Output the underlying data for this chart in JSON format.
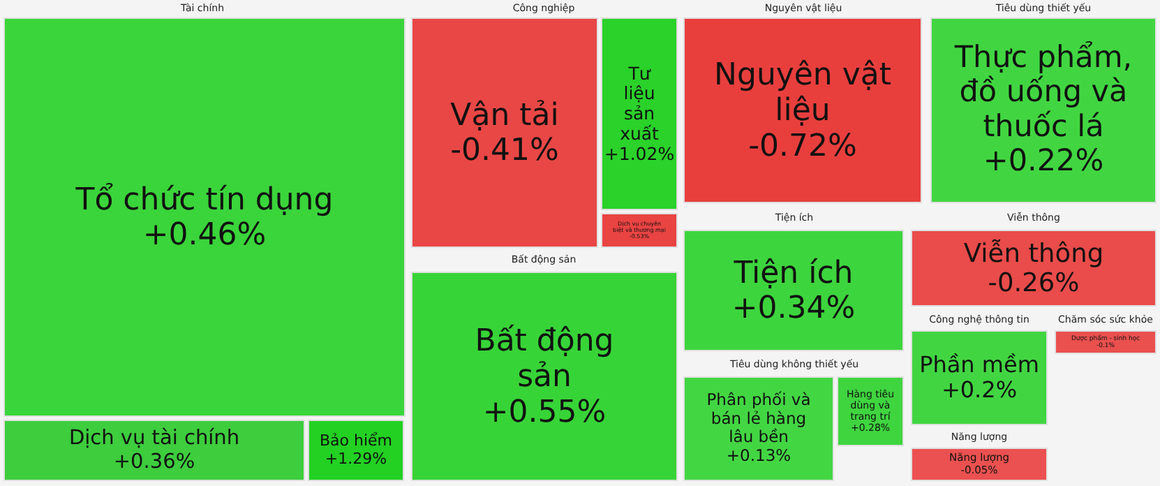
{
  "chart_data": {
    "type": "other",
    "categories": [
      "Tổ chức tín dụng",
      "Dịch vụ tài chính",
      "Bảo hiểm",
      "Vận tải",
      "Tư liệu sản xuất",
      "Dịch vụ chuyên biệt và thương mại",
      "Bất động sản",
      "Nguyên vật liệu",
      "Thực phẩm, đồ uống và thuốc lá",
      "Tiện ích",
      "Viễn thông",
      "Phân phối và bán lẻ hàng lâu bền",
      "Hàng tiêu dùng và trang trí",
      "Phần mềm",
      "Dược phẩm - sinh học",
      "Năng lượng"
    ],
    "values": [
      0.46,
      0.36,
      1.29,
      -0.41,
      1.02,
      -0.53,
      0.55,
      -0.72,
      0.22,
      0.34,
      -0.26,
      0.13,
      0.28,
      0.2,
      -0.1,
      -0.05
    ],
    "colors": [
      "#22d122",
      "#22c822",
      "#22d122",
      "#e8302e",
      "#22d122",
      "#e8302e",
      "#22d122",
      "#e8302e",
      "#22d122",
      "#22d122",
      "#e8302e",
      "#22d122",
      "#22d122",
      "#22d122",
      "#e8302e",
      "#e8302e"
    ],
    "value_labels": [
      "+0.46%",
      "+0.36%",
      "+1.29%",
      "-0.41%",
      "+1.02%",
      "-0.53%",
      "+0.55%",
      "-0.72%",
      "+0.22%",
      "+0.34%",
      "-0.26%",
      "+0.13%",
      "+0.28%",
      "+0.2%",
      "-0.1%",
      "-0.05%"
    ],
    "annotations": [
      "Tài chính",
      "Công nghiệp",
      "Bất động sản",
      "Nguyên vật liệu",
      "Tiêu dùng thiết yếu",
      "Tiện ích",
      "Viễn thông",
      "Tiêu dùng không thiết yếu",
      "Công nghệ thông tin",
      "Chăm sóc sức khỏe",
      "Năng lượng"
    ]
  }
}
